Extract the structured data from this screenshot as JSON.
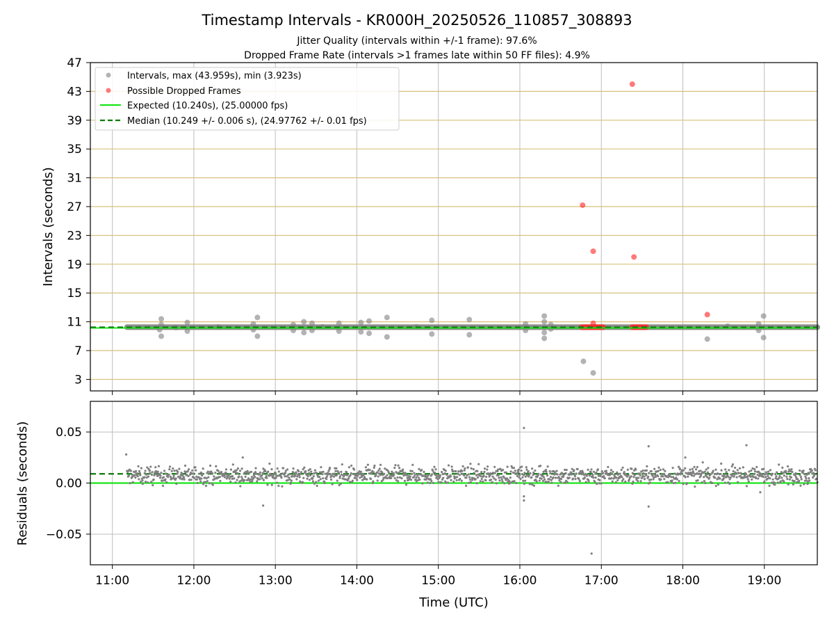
{
  "chart_data": {
    "title": "Timestamp Intervals - KR000H_20250526_110857_308893",
    "subtitles": [
      "Jitter Quality (intervals within +/-1 frame): 97.6%",
      "Dropped Frame Rate (intervals >1 frames late within 50 FF files): 4.9%"
    ],
    "xlabel": "Time (UTC)",
    "x_tick_labels": [
      "11:00",
      "12:00",
      "13:00",
      "14:00",
      "15:00",
      "16:00",
      "17:00",
      "18:00",
      "19:00"
    ],
    "x_range_hours": [
      10.73,
      19.65
    ],
    "colors": {
      "intervals": "#808080",
      "dropped": "#ff2020",
      "expected": "#17e517",
      "median": "#0a7a0a",
      "top_grid": "#d8c07a",
      "grid": "#bdbdbd"
    },
    "panels": [
      {
        "type": "scatter",
        "ylabel": "Intervals (seconds)",
        "ylim": [
          1.4,
          47
        ],
        "yticks": [
          3,
          7,
          11,
          15,
          19,
          23,
          27,
          31,
          35,
          39,
          43,
          47
        ],
        "grid": "horizontal+vertical",
        "legend_position": "top-left",
        "legend": [
          "Intervals, max (43.959s), min (3.923s)",
          "Possible Dropped Frames",
          "Expected (10.240s), (25.00000 fps)",
          "Median (10.249 +/- 0.006 s), (24.97762 +/- 0.01 fps)"
        ],
        "expected": 10.24,
        "median": 10.249,
        "interval_span_hours": [
          11.18,
          19.65
        ],
        "interval_outliers": [
          {
            "x": 11.58,
            "y": 9.9
          },
          {
            "x": 11.6,
            "y": 11.4
          },
          {
            "x": 11.6,
            "y": 9.0
          },
          {
            "x": 11.6,
            "y": 10.6
          },
          {
            "x": 11.78,
            "y": 10.2
          },
          {
            "x": 11.92,
            "y": 10.9
          },
          {
            "x": 11.92,
            "y": 9.7
          },
          {
            "x": 12.3,
            "y": 10.3
          },
          {
            "x": 12.73,
            "y": 10.7
          },
          {
            "x": 12.73,
            "y": 9.9
          },
          {
            "x": 12.78,
            "y": 11.6
          },
          {
            "x": 12.78,
            "y": 9.0
          },
          {
            "x": 13.22,
            "y": 10.6
          },
          {
            "x": 13.22,
            "y": 9.8
          },
          {
            "x": 13.35,
            "y": 11.0
          },
          {
            "x": 13.35,
            "y": 9.5
          },
          {
            "x": 13.45,
            "y": 10.8
          },
          {
            "x": 13.45,
            "y": 9.8
          },
          {
            "x": 13.58,
            "y": 10.3
          },
          {
            "x": 13.78,
            "y": 10.8
          },
          {
            "x": 13.78,
            "y": 9.7
          },
          {
            "x": 14.05,
            "y": 10.9
          },
          {
            "x": 14.05,
            "y": 9.6
          },
          {
            "x": 14.15,
            "y": 11.1
          },
          {
            "x": 14.15,
            "y": 9.4
          },
          {
            "x": 14.37,
            "y": 11.6
          },
          {
            "x": 14.37,
            "y": 8.9
          },
          {
            "x": 14.73,
            "y": 10.3
          },
          {
            "x": 14.92,
            "y": 11.2
          },
          {
            "x": 14.92,
            "y": 9.3
          },
          {
            "x": 15.38,
            "y": 11.3
          },
          {
            "x": 15.38,
            "y": 9.2
          },
          {
            "x": 16.07,
            "y": 10.7
          },
          {
            "x": 16.07,
            "y": 9.8
          },
          {
            "x": 16.3,
            "y": 11.8
          },
          {
            "x": 16.3,
            "y": 8.7
          },
          {
            "x": 16.3,
            "y": 11.0
          },
          {
            "x": 16.3,
            "y": 9.5
          },
          {
            "x": 16.38,
            "y": 10.6
          },
          {
            "x": 16.38,
            "y": 10.0
          },
          {
            "x": 16.78,
            "y": 5.5
          },
          {
            "x": 16.9,
            "y": 3.9
          },
          {
            "x": 18.3,
            "y": 8.6
          },
          {
            "x": 18.55,
            "y": 10.4
          },
          {
            "x": 18.93,
            "y": 10.7
          },
          {
            "x": 18.93,
            "y": 9.8
          },
          {
            "x": 18.99,
            "y": 11.8
          },
          {
            "x": 18.99,
            "y": 8.8
          }
        ],
        "dropped_points": [
          {
            "x": 16.77,
            "y": 27.2
          },
          {
            "x": 16.9,
            "y": 20.8
          },
          {
            "x": 16.9,
            "y": 10.8
          },
          {
            "x": 17.38,
            "y": 44.0
          },
          {
            "x": 17.4,
            "y": 20.0
          },
          {
            "x": 18.3,
            "y": 12.0
          }
        ],
        "dropped_clusters_hours": [
          [
            16.76,
            17.02
          ],
          [
            17.38,
            17.55
          ]
        ]
      },
      {
        "type": "scatter",
        "ylabel": "Residuals (seconds)",
        "ylim": [
          -0.08,
          0.08
        ],
        "yticks": [
          -0.05,
          0.0,
          0.05
        ],
        "ytick_labels": [
          "−0.05",
          "0.00",
          "0.05"
        ],
        "expected": 0.0,
        "median": 0.009,
        "residual_span_hours": [
          11.18,
          19.65
        ],
        "residual_band": [
          -0.005,
          0.02
        ],
        "residual_outliers": [
          {
            "x": 11.17,
            "y": 0.028
          },
          {
            "x": 12.6,
            "y": 0.025
          },
          {
            "x": 12.85,
            "y": -0.022
          },
          {
            "x": 16.05,
            "y": 0.054
          },
          {
            "x": 16.05,
            "y": -0.017
          },
          {
            "x": 16.05,
            "y": -0.013
          },
          {
            "x": 16.88,
            "y": -0.069
          },
          {
            "x": 17.58,
            "y": 0.036
          },
          {
            "x": 17.58,
            "y": -0.023
          },
          {
            "x": 18.03,
            "y": 0.025
          },
          {
            "x": 18.78,
            "y": 0.037
          },
          {
            "x": 18.95,
            "y": -0.009
          }
        ]
      }
    ]
  }
}
